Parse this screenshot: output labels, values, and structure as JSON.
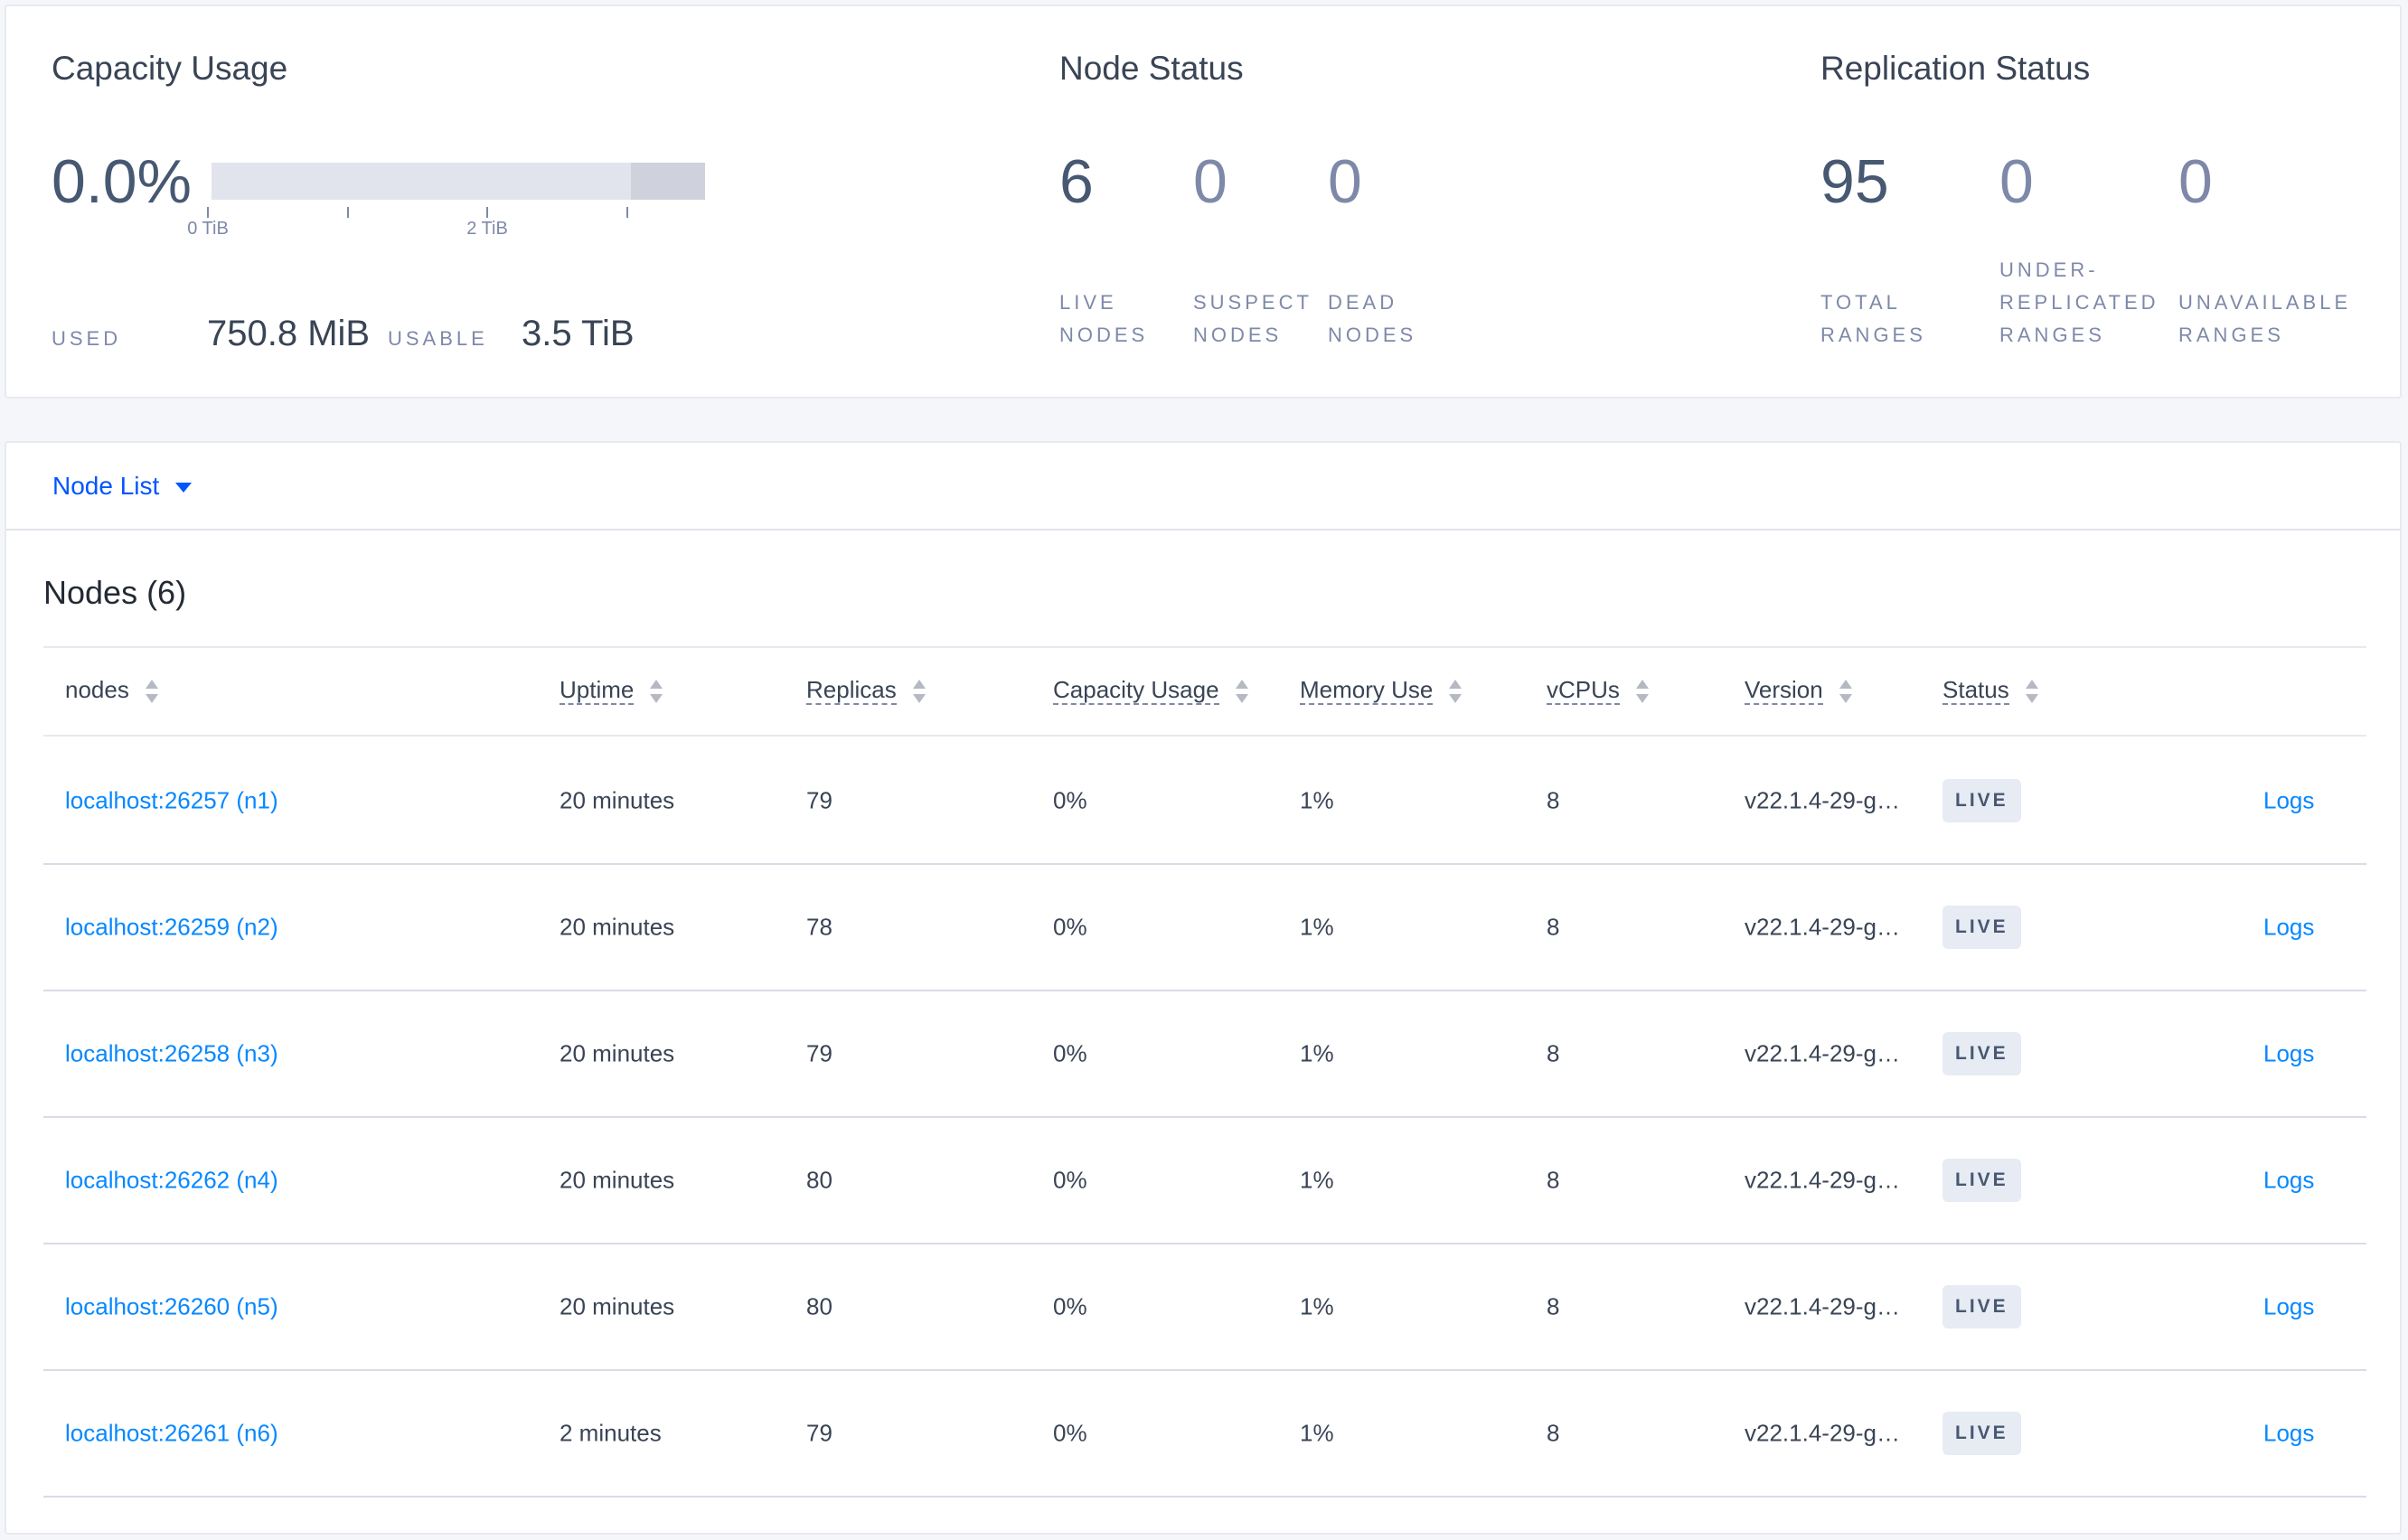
{
  "capacity": {
    "title": "Capacity Usage",
    "percent": "0.0%",
    "used_fraction": 0.0,
    "ticks": [
      "0 TiB",
      "2 TiB"
    ],
    "used_label": "USED",
    "used_value": "750.8 MiB",
    "usable_label": "USABLE",
    "usable_value": "3.5 TiB"
  },
  "node_status": {
    "title": "Node Status",
    "live": "6",
    "live_label": [
      "LIVE",
      "NODES"
    ],
    "suspect": "0",
    "suspect_label": [
      "SUSPECT",
      "NODES"
    ],
    "dead": "0",
    "dead_label": [
      "DEAD",
      "NODES"
    ]
  },
  "replication": {
    "title": "Replication Status",
    "total": "95",
    "total_label": [
      "TOTAL",
      "RANGES"
    ],
    "under": "0",
    "under_label": [
      "UNDER-",
      "REPLICATED",
      "RANGES"
    ],
    "unavailable": "0",
    "unavailable_label": [
      "UNAVAILABLE",
      "RANGES"
    ]
  },
  "nodelist": {
    "selector": "Node List",
    "heading": "Nodes (6)",
    "columns": [
      "nodes",
      "Uptime",
      "Replicas",
      "Capacity Usage",
      "Memory Use",
      "vCPUs",
      "Version",
      "Status"
    ],
    "rows": [
      {
        "node": "localhost:26257 (n1)",
        "uptime": "20 minutes",
        "replicas": "79",
        "capacity": "0%",
        "memory": "1%",
        "vcpus": "8",
        "version": "v22.1.4-29-g…",
        "status": "LIVE",
        "logs": "Logs"
      },
      {
        "node": "localhost:26259 (n2)",
        "uptime": "20 minutes",
        "replicas": "78",
        "capacity": "0%",
        "memory": "1%",
        "vcpus": "8",
        "version": "v22.1.4-29-g…",
        "status": "LIVE",
        "logs": "Logs"
      },
      {
        "node": "localhost:26258 (n3)",
        "uptime": "20 minutes",
        "replicas": "79",
        "capacity": "0%",
        "memory": "1%",
        "vcpus": "8",
        "version": "v22.1.4-29-g…",
        "status": "LIVE",
        "logs": "Logs"
      },
      {
        "node": "localhost:26262 (n4)",
        "uptime": "20 minutes",
        "replicas": "80",
        "capacity": "0%",
        "memory": "1%",
        "vcpus": "8",
        "version": "v22.1.4-29-g…",
        "status": "LIVE",
        "logs": "Logs"
      },
      {
        "node": "localhost:26260 (n5)",
        "uptime": "20 minutes",
        "replicas": "80",
        "capacity": "0%",
        "memory": "1%",
        "vcpus": "8",
        "version": "v22.1.4-29-g…",
        "status": "LIVE",
        "logs": "Logs"
      },
      {
        "node": "localhost:26261 (n6)",
        "uptime": "2 minutes",
        "replicas": "79",
        "capacity": "0%",
        "memory": "1%",
        "vcpus": "8",
        "version": "v22.1.4-29-g…",
        "status": "LIVE",
        "logs": "Logs"
      }
    ]
  }
}
